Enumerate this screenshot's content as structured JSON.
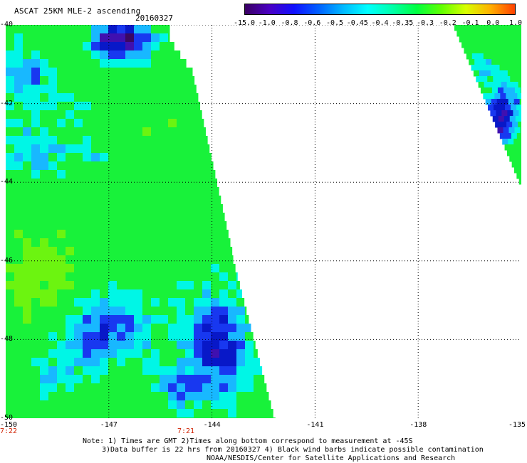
{
  "header": {
    "title": "ASCAT 25KM MLE-2 ascending",
    "date": "20160327"
  },
  "colorbar": {
    "labels": [
      "-15.0",
      "-1.0",
      "-0.8",
      "-0.6",
      "-0.5",
      "-0.45",
      "-0.4",
      "-0.35",
      "-0.3",
      "-0.2",
      "-0.1",
      "0.0",
      "1.0"
    ],
    "colors": [
      "#3a0062",
      "#4a00c4",
      "#1010ff",
      "#0060ff",
      "#00b8ff",
      "#00ffff",
      "#00ffaa",
      "#00ff40",
      "#60ff00",
      "#d8ff00",
      "#ffb000",
      "#ff4000"
    ]
  },
  "map": {
    "lat_labels": [
      "-40",
      "-42",
      "-44",
      "-46",
      "-48",
      "-50"
    ],
    "lon_labels": [
      "-150",
      "-147",
      "-144",
      "-141",
      "-138",
      "-135"
    ],
    "time_labels": [
      "7:22",
      "7:21"
    ]
  },
  "notes": {
    "line1": "Note: 1) Times are GMT 2)Times along bottom correspond to measurement at -45S",
    "line2": "3)Data buffer is 22 hrs from 20160327 4) Black wind barbs indicate possible contamination",
    "line3": "NOAA/NESDIS/Center for Satellite Applications and Research"
  },
  "palette": {
    "green": "#18f23a",
    "light_green": "#6cf410",
    "cyan": "#00f6e6",
    "sky": "#18b8ff",
    "blue": "#1838f0",
    "deep_blue": "#0818c8",
    "purple": "#4010b0",
    "deep_purple": "#3a0862"
  }
}
